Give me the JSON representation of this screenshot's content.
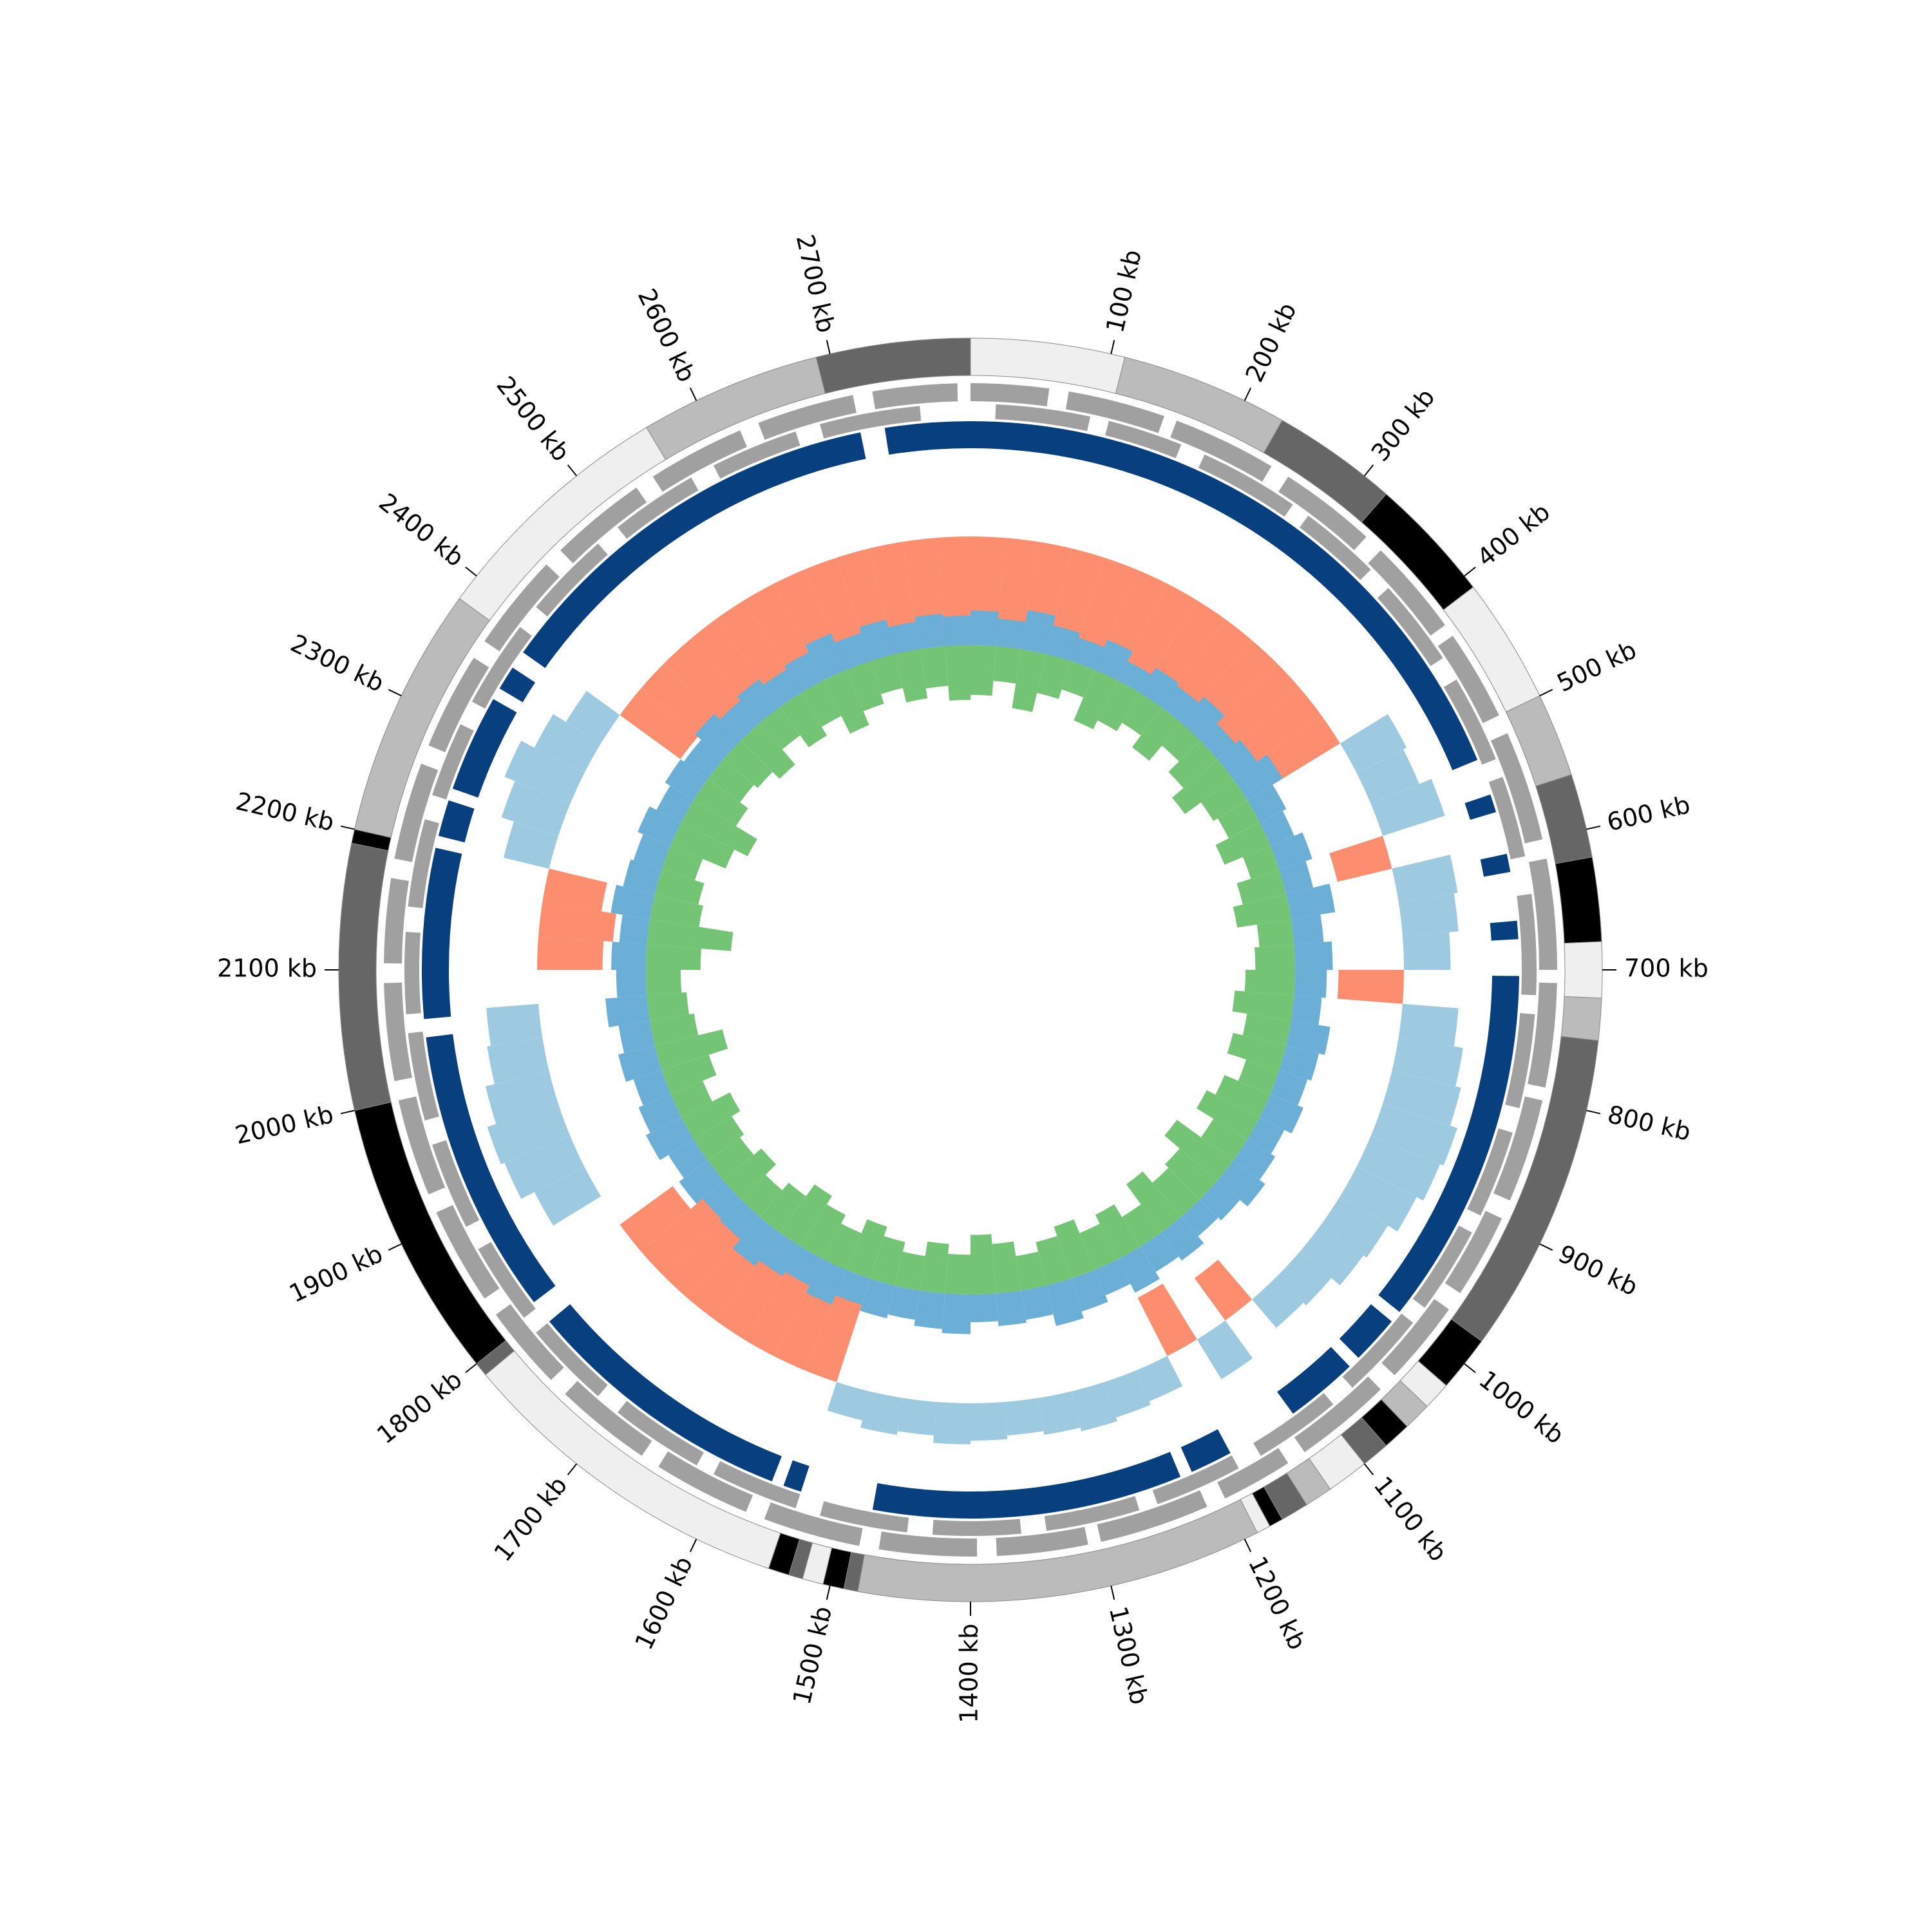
{
  "chart_data": {
    "type": "circos",
    "xlim": [
      0,
      2800
    ],
    "xticks": [
      {
        "value": 100,
        "label": "100 kb"
      },
      {
        "value": 200,
        "label": "200 kb"
      },
      {
        "value": 300,
        "label": "300 kb"
      },
      {
        "value": 400,
        "label": "400 kb"
      },
      {
        "value": 500,
        "label": "500 kb"
      },
      {
        "value": 600,
        "label": "600 kb"
      },
      {
        "value": 700,
        "label": "700 kb"
      },
      {
        "value": 800,
        "label": "800 kb"
      },
      {
        "value": 900,
        "label": "900 kb"
      },
      {
        "value": 1000,
        "label": "1000 kb"
      },
      {
        "value": 1100,
        "label": "1100 kb"
      },
      {
        "value": 1200,
        "label": "1200 kb"
      },
      {
        "value": 1300,
        "label": "1300 kb"
      },
      {
        "value": 1400,
        "label": "1400 kb"
      },
      {
        "value": 1500,
        "label": "1500 kb"
      },
      {
        "value": 1600,
        "label": "1600 kb"
      },
      {
        "value": 1700,
        "label": "1700 kb"
      },
      {
        "value": 1800,
        "label": "1800 kb"
      },
      {
        "value": 1900,
        "label": "1900 kb"
      },
      {
        "value": 2000,
        "label": "2000 kb"
      },
      {
        "value": 2100,
        "label": "2100 kb"
      },
      {
        "value": 2200,
        "label": "2200 kb"
      },
      {
        "value": 2300,
        "label": "2300 kb"
      },
      {
        "value": 2400,
        "label": "2400 kb"
      },
      {
        "value": 2500,
        "label": "2500 kb"
      },
      {
        "value": 2600,
        "label": "2600 kb"
      },
      {
        "value": 2700,
        "label": "2700 kb"
      }
    ],
    "bands": [
      {
        "start": 0,
        "end": 110,
        "color": "#efefef"
      },
      {
        "start": 110,
        "end": 230,
        "color": "#bbbbbb"
      },
      {
        "start": 230,
        "end": 320,
        "color": "#666666"
      },
      {
        "start": 320,
        "end": 410,
        "color": "#000000"
      },
      {
        "start": 410,
        "end": 500,
        "color": "#efefef"
      },
      {
        "start": 500,
        "end": 560,
        "color": "#bbbbbb"
      },
      {
        "start": 560,
        "end": 620,
        "color": "#666666"
      },
      {
        "start": 620,
        "end": 680,
        "color": "#000000"
      },
      {
        "start": 680,
        "end": 720,
        "color": "#efefef"
      },
      {
        "start": 720,
        "end": 750,
        "color": "#bbbbbb"
      },
      {
        "start": 750,
        "end": 980,
        "color": "#666666"
      },
      {
        "start": 980,
        "end": 1020,
        "color": "#000000"
      },
      {
        "start": 1020,
        "end": 1040,
        "color": "#efefef"
      },
      {
        "start": 1040,
        "end": 1060,
        "color": "#bbbbbb"
      },
      {
        "start": 1060,
        "end": 1080,
        "color": "#000000"
      },
      {
        "start": 1080,
        "end": 1100,
        "color": "#666666"
      },
      {
        "start": 1100,
        "end": 1130,
        "color": "#efefef"
      },
      {
        "start": 1130,
        "end": 1150,
        "color": "#bbbbbb"
      },
      {
        "start": 1150,
        "end": 1170,
        "color": "#666666"
      },
      {
        "start": 1170,
        "end": 1180,
        "color": "#000000"
      },
      {
        "start": 1180,
        "end": 1190,
        "color": "#efefef"
      },
      {
        "start": 1190,
        "end": 1480,
        "color": "#bbbbbb"
      },
      {
        "start": 1480,
        "end": 1490,
        "color": "#666666"
      },
      {
        "start": 1490,
        "end": 1505,
        "color": "#000000"
      },
      {
        "start": 1505,
        "end": 1520,
        "color": "#efefef"
      },
      {
        "start": 1520,
        "end": 1530,
        "color": "#666666"
      },
      {
        "start": 1530,
        "end": 1545,
        "color": "#000000"
      },
      {
        "start": 1545,
        "end": 1790,
        "color": "#efefef"
      },
      {
        "start": 1790,
        "end": 1800,
        "color": "#666666"
      },
      {
        "start": 1800,
        "end": 2000,
        "color": "#000000"
      },
      {
        "start": 2000,
        "end": 2190,
        "color": "#666666"
      },
      {
        "start": 2190,
        "end": 2200,
        "color": "#000000"
      },
      {
        "start": 2200,
        "end": 2380,
        "color": "#bbbbbb"
      },
      {
        "start": 2380,
        "end": 2560,
        "color": "#efefef"
      },
      {
        "start": 2560,
        "end": 2690,
        "color": "#bbbbbb"
      },
      {
        "start": 2690,
        "end": 2800,
        "color": "#666666"
      }
    ],
    "genes": {
      "color": "#a0a0a0",
      "forward": [
        [
          0,
          60
        ],
        [
          75,
          150
        ],
        [
          160,
          240
        ],
        [
          255,
          330
        ],
        [
          345,
          420
        ],
        [
          430,
          500
        ],
        [
          515,
          600
        ],
        [
          615,
          700
        ],
        [
          710,
          790
        ],
        [
          800,
          880
        ],
        [
          895,
          960
        ],
        [
          975,
          1040
        ],
        [
          1055,
          1130
        ],
        [
          1145,
          1200
        ],
        [
          1215,
          1300
        ],
        [
          1310,
          1380
        ],
        [
          1395,
          1470
        ],
        [
          1485,
          1560
        ],
        [
          1575,
          1650
        ],
        [
          1665,
          1740
        ],
        [
          1755,
          1820
        ],
        [
          1835,
          1910
        ],
        [
          1925,
          2000
        ],
        [
          2015,
          2090
        ],
        [
          2105,
          2170
        ],
        [
          2185,
          2260
        ],
        [
          2275,
          2350
        ],
        [
          2365,
          2440
        ],
        [
          2455,
          2530
        ],
        [
          2545,
          2620
        ],
        [
          2635,
          2710
        ],
        [
          2725,
          2790
        ]
      ],
      "reverse": [
        [
          20,
          95
        ],
        [
          110,
          170
        ],
        [
          190,
          270
        ],
        [
          285,
          350
        ],
        [
          370,
          440
        ],
        [
          460,
          530
        ],
        [
          545,
          610
        ],
        [
          640,
          720
        ],
        [
          735,
          810
        ],
        [
          830,
          900
        ],
        [
          915,
          985
        ],
        [
          1000,
          1070
        ],
        [
          1090,
          1160
        ],
        [
          1180,
          1250
        ],
        [
          1265,
          1340
        ],
        [
          1360,
          1430
        ],
        [
          1450,
          1520
        ],
        [
          1540,
          1610
        ],
        [
          1625,
          1700
        ],
        [
          1720,
          1790
        ],
        [
          1805,
          1870
        ],
        [
          1890,
          1960
        ],
        [
          1980,
          2050
        ],
        [
          2065,
          2130
        ],
        [
          2150,
          2220
        ],
        [
          2240,
          2300
        ],
        [
          2320,
          2390
        ],
        [
          2410,
          2480
        ],
        [
          2500,
          2570
        ],
        [
          2590,
          2660
        ],
        [
          2680,
          2760
        ]
      ]
    },
    "blocks": {
      "color": "#08407f",
      "ranges": [
        [
          0,
          525
        ],
        [
          555,
          570
        ],
        [
          605,
          620
        ],
        [
          660,
          675
        ],
        [
          705,
          1000
        ],
        [
          1010,
          1050
        ],
        [
          1060,
          1120
        ],
        [
          1180,
          1215
        ],
        [
          1225,
          1480
        ],
        [
          1540,
          1555
        ],
        [
          1565,
          1790
        ],
        [
          1810,
          2045
        ],
        [
          2060,
          2200
        ],
        [
          2210,
          2240
        ],
        [
          2250,
          2330
        ],
        [
          2340,
          2360
        ],
        [
          2375,
          2710
        ],
        [
          2730,
          2800
        ]
      ]
    },
    "bins": [
      0,
      35,
      70,
      105,
      140,
      175,
      210,
      245,
      280,
      315,
      350,
      385,
      420,
      455,
      490,
      525,
      560,
      595,
      630,
      665,
      700,
      735,
      770,
      805,
      840,
      875,
      910,
      945,
      980,
      1015,
      1050,
      1085,
      1120,
      1155,
      1190,
      1225,
      1260,
      1295,
      1330,
      1365,
      1400,
      1435,
      1470,
      1505,
      1540,
      1575,
      1610,
      1645,
      1680,
      1715,
      1750,
      1785,
      1820,
      1855,
      1890,
      1925,
      1960,
      1995,
      2030,
      2065,
      2100,
      2135,
      2170,
      2205,
      2240,
      2275,
      2310,
      2345,
      2380,
      2415,
      2450,
      2485,
      2520,
      2555,
      2590,
      2625,
      2660,
      2695,
      2730,
      2765,
      2800
    ],
    "rings": [
      {
        "ylim": [
          -1,
          1
        ],
        "positive_color": "#9ecae1",
        "negative_color": "#fc8d6e",
        "values": [
          -0.55,
          -0.62,
          -0.5,
          -0.68,
          -0.58,
          -0.6,
          -0.52,
          -0.65,
          -0.57,
          -0.6,
          -0.5,
          -0.55,
          -0.48,
          0.3,
          0.28,
          0.35,
          -0.3,
          0.32,
          0.3,
          0.25,
          -0.35,
          0.3,
          0.35,
          0.38,
          0.42,
          0.4,
          0.36,
          0.3,
          0.28,
          0.22,
          0.2,
          -0.28,
          0.25,
          -0.35,
          0.18,
          0.2,
          0.22,
          0.2,
          0.18,
          0.2,
          0.22,
          0.18,
          0.2,
          0.16,
          -0.45,
          -0.6,
          -0.55,
          -0.58,
          -0.5,
          -0.52,
          -0.45,
          -0.35,
          null,
          0.3,
          0.38,
          0.4,
          0.35,
          0.3,
          0.28,
          null,
          -0.35,
          -0.4,
          -0.32,
          0.25,
          0.32,
          0.38,
          0.3,
          0.22,
          -0.4,
          -0.5,
          -0.58,
          -0.6,
          -0.55,
          -0.62,
          -0.58,
          -0.6,
          -0.65,
          -0.6,
          -0.58,
          -0.62
        ]
      },
      {
        "ylim": [
          -1,
          1
        ],
        "outer_color": "#6baed6",
        "inner_color": "#74c476",
        "outer_values": [
          0.35,
          0.28,
          0.4,
          0.3,
          0.25,
          0.33,
          0.22,
          0.3,
          0.27,
          0.35,
          0.24,
          0.3,
          0.42,
          0.3,
          0.26,
          0.35,
          0.28,
          0.45,
          0.3,
          0.38,
          0.32,
          0.28,
          0.4,
          0.34,
          0.3,
          0.36,
          0.28,
          0.33,
          0.4,
          0.3,
          0.26,
          0.35,
          0.3,
          0.38,
          0.28,
          0.35,
          0.42,
          0.3,
          0.33,
          0.28,
          0.4,
          0.36,
          0.3,
          0.34,
          0.28,
          0.38,
          0.3,
          0.35,
          0.42,
          0.3,
          0.28,
          0.36,
          0.3,
          0.4,
          0.35,
          0.3,
          0.38,
          0.32,
          0.42,
          0.3,
          0.35,
          0.28,
          0.4,
          0.33,
          0.3,
          0.36,
          0.28,
          0.34,
          0.3,
          0.38,
          0.3,
          0.35,
          0.28,
          0.32,
          0.4,
          0.3,
          0.36,
          0.28,
          0.33,
          0.3
        ],
        "inner_values": [
          -0.5,
          -0.35,
          -0.6,
          -0.4,
          -0.3,
          -0.55,
          -0.45,
          -0.35,
          -0.5,
          -0.3,
          -0.45,
          -0.6,
          -0.4,
          -0.35,
          -0.5,
          -0.3,
          -0.45,
          -0.55,
          -0.35,
          -0.4,
          -0.5,
          -0.6,
          -0.45,
          -0.55,
          -0.35,
          -0.5,
          -0.6,
          -0.4,
          -0.7,
          -0.5,
          -0.45,
          -0.6,
          -0.35,
          -0.5,
          -0.4,
          -0.55,
          -0.45,
          -0.35,
          -0.5,
          -0.6,
          -0.4,
          -0.5,
          -0.35,
          -0.45,
          -0.55,
          -0.4,
          -0.5,
          -0.6,
          -0.45,
          -0.35,
          -0.5,
          -0.4,
          -0.45,
          -0.55,
          -0.35,
          -0.5,
          -0.7,
          -0.45,
          -0.4,
          -0.35,
          -0.55,
          -0.85,
          -0.5,
          -0.45,
          -0.35,
          -0.6,
          -0.75,
          -0.5,
          -0.4,
          -0.45,
          -0.55,
          -0.35,
          -0.5,
          -0.4,
          -0.6,
          -0.45,
          -0.35,
          -0.5,
          -0.4,
          -0.55
        ]
      }
    ]
  }
}
